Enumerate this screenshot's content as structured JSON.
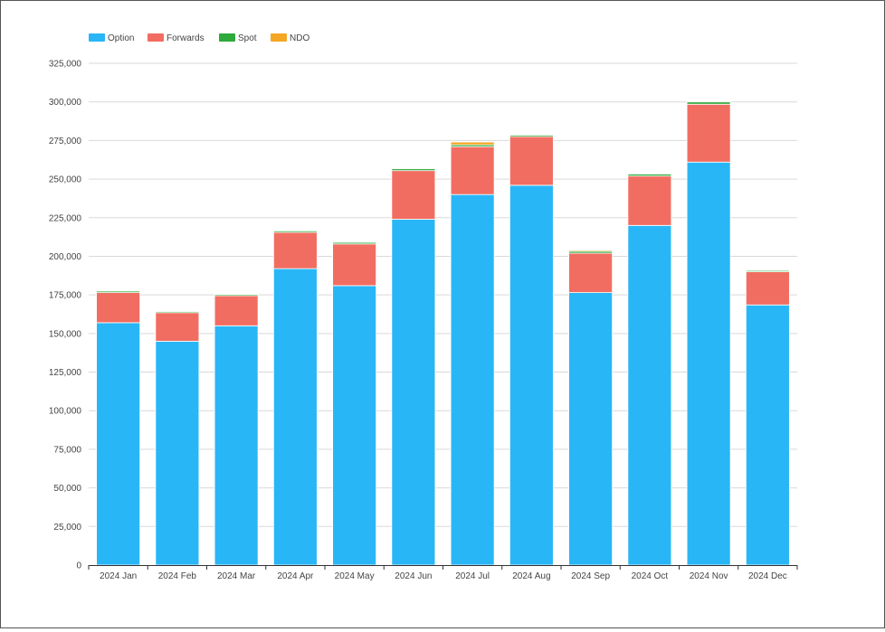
{
  "chart_data": {
    "type": "bar",
    "stacked": true,
    "title": "",
    "xlabel": "",
    "ylabel": "",
    "categories": [
      "2024 Jan",
      "2024 Feb",
      "2024 Mar",
      "2024 Apr",
      "2024 May",
      "2024 Jun",
      "2024 Jul",
      "2024 Aug",
      "2024 Sep",
      "2024 Oct",
      "2024 Nov",
      "2024 Dec"
    ],
    "ylim": [
      0,
      325000
    ],
    "yticks": [
      0,
      25000,
      50000,
      75000,
      100000,
      125000,
      150000,
      175000,
      200000,
      225000,
      250000,
      275000,
      300000,
      325000
    ],
    "ytick_labels": [
      "0",
      "25,000",
      "50,000",
      "75,000",
      "100,000",
      "125,000",
      "150,000",
      "175,000",
      "200,000",
      "225,000",
      "250,000",
      "275,000",
      "300,000",
      "325,000"
    ],
    "grid": true,
    "legend_position": "top-left",
    "series": [
      {
        "name": "Option",
        "color": "#29b6f6",
        "values": [
          157000,
          145000,
          155000,
          192000,
          181000,
          224000,
          240000,
          246000,
          176500,
          220000,
          261000,
          168500
        ]
      },
      {
        "name": "Forwards",
        "color": "#f26d61",
        "values": [
          19500,
          18500,
          19500,
          23500,
          27000,
          31500,
          31000,
          31500,
          25500,
          32000,
          37500,
          21500
        ]
      },
      {
        "name": "Spot",
        "color": "#2eaa3a",
        "values": [
          1000,
          800,
          800,
          1000,
          1000,
          1200,
          1200,
          1000,
          1200,
          1300,
          1500,
          800
        ]
      },
      {
        "name": "NDO",
        "color": "#f5a623",
        "values": [
          300,
          200,
          200,
          300,
          300,
          500,
          1800,
          200,
          700,
          300,
          500,
          300
        ]
      }
    ]
  }
}
